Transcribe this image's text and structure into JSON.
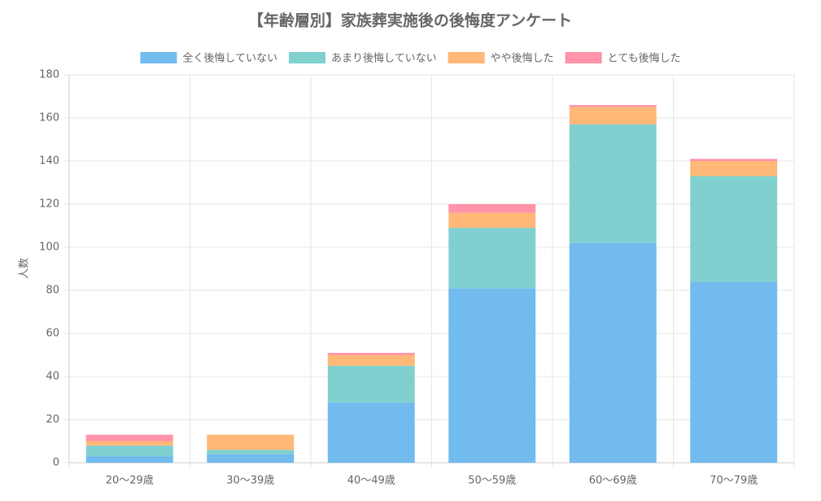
{
  "chart_data": {
    "type": "stacked_bar",
    "title": "【年齢層別】家族葬実施後の後悔度アンケート",
    "y_label": "人数",
    "categories": [
      "20〜29歳",
      "30〜39歳",
      "40〜49歳",
      "50〜59歳",
      "60〜69歳",
      "70〜79歳"
    ],
    "series": [
      {
        "name": "全く後悔していない",
        "color": "#72bbef",
        "values": [
          3,
          4,
          28,
          81,
          102,
          84
        ]
      },
      {
        "name": "あまり後悔していない",
        "color": "#80d0d0",
        "values": [
          5,
          2,
          17,
          28,
          55,
          49
        ]
      },
      {
        "name": "やや後悔した",
        "color": "#ffb877",
        "values": [
          2,
          7,
          5,
          7,
          8,
          7
        ]
      },
      {
        "name": "とても後悔した",
        "color": "#ff93a9",
        "values": [
          3,
          0,
          1,
          4,
          1,
          1
        ]
      }
    ],
    "ylim": [
      0,
      180
    ],
    "yticks": [
      0,
      20,
      40,
      60,
      80,
      100,
      120,
      140,
      160,
      180
    ],
    "grid": true
  }
}
